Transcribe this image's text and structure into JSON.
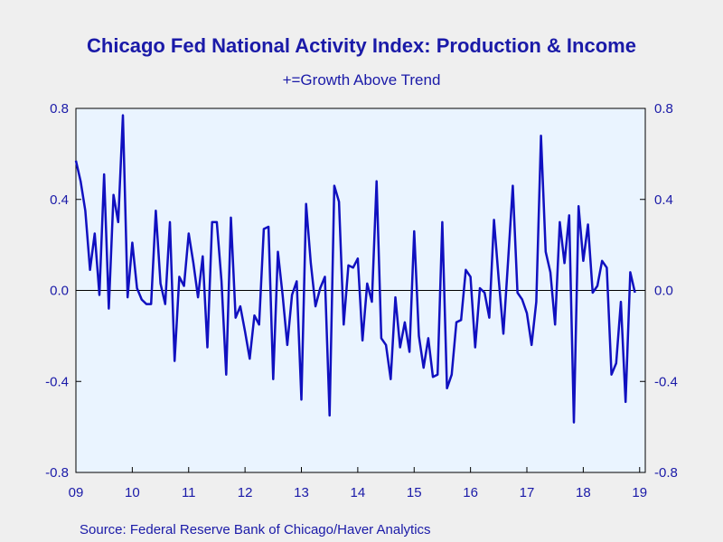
{
  "title": "Chicago Fed National Activity Index: Production & Income",
  "subtitle": "+=Growth Above Trend",
  "source": "Source:  Federal Reserve Bank of Chicago/Haver Analytics",
  "colors": {
    "line": "#1010c0",
    "text": "#1a1aa8",
    "plot_bg": "#eaf4ff",
    "page_bg": "#efefef",
    "zero_line": "#000000"
  },
  "chart_data": {
    "type": "line",
    "y_ticks": [
      "0.8",
      "0.4",
      "0.0",
      "-0.4",
      "-0.8"
    ],
    "y_tick_values": [
      0.8,
      0.4,
      0.0,
      -0.4,
      -0.8
    ],
    "x_ticks": [
      "09",
      "10",
      "11",
      "12",
      "13",
      "14",
      "15",
      "16",
      "17",
      "18",
      "19"
    ],
    "x_tick_values": [
      2009,
      2010,
      2011,
      2012,
      2013,
      2014,
      2015,
      2016,
      2017,
      2018,
      2019
    ],
    "xlim": [
      2009.0,
      2019.1
    ],
    "ylim": [
      -0.8,
      0.8
    ],
    "grid": false,
    "zero_line": true,
    "series": [
      {
        "values": [
          0.57,
          0.48,
          0.35,
          0.09,
          0.25,
          -0.02,
          0.51,
          -0.08,
          0.42,
          0.3,
          0.77,
          -0.03,
          0.21,
          0.01,
          -0.04,
          -0.06,
          -0.06,
          0.35,
          0.03,
          -0.06,
          0.3,
          -0.31,
          0.06,
          0.02,
          0.25,
          0.12,
          -0.03,
          0.15,
          -0.25,
          0.3,
          0.3,
          0.04,
          -0.37,
          0.32,
          -0.12,
          -0.07,
          -0.18,
          -0.3,
          -0.11,
          -0.15,
          0.27,
          0.28,
          -0.39,
          0.17,
          -0.02,
          -0.24,
          -0.02,
          0.04,
          -0.48,
          0.38,
          0.12,
          -0.07,
          0.01,
          0.06,
          -0.55,
          0.46,
          0.39,
          -0.15,
          0.11,
          0.1,
          0.14,
          -0.22,
          0.03,
          -0.05,
          0.48,
          -0.21,
          -0.24,
          -0.39,
          -0.03,
          -0.25,
          -0.14,
          -0.27,
          0.26,
          -0.2,
          -0.34,
          -0.21,
          -0.38,
          -0.37,
          0.3,
          -0.43,
          -0.37,
          -0.14,
          -0.13,
          0.09,
          0.06,
          -0.25,
          0.01,
          -0.01,
          -0.12,
          0.31,
          0.05,
          -0.19,
          0.13,
          0.46,
          -0.01,
          -0.04,
          -0.1,
          -0.24,
          -0.05,
          0.68,
          0.17,
          0.08,
          -0.15,
          0.3,
          0.12,
          0.33,
          -0.58,
          0.37,
          0.13,
          0.29,
          -0.01,
          0.02,
          0.13,
          0.1,
          -0.37,
          -0.32,
          -0.05,
          -0.49,
          0.08,
          -0.01
        ]
      }
    ]
  }
}
